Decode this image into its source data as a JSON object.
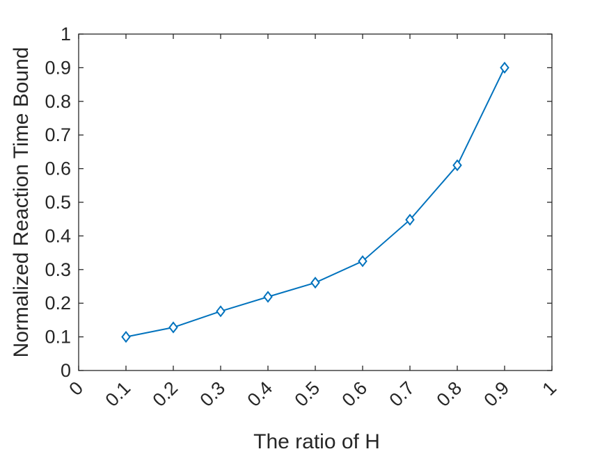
{
  "chart_data": {
    "type": "line",
    "title": "",
    "xlabel": "The ratio of H",
    "ylabel": "Normalized Reaction Time Bound",
    "xlim": [
      0,
      1
    ],
    "ylim": [
      0,
      1
    ],
    "x_ticks": [
      "0",
      "0.1",
      "0.2",
      "0.3",
      "0.4",
      "0.5",
      "0.6",
      "0.7",
      "0.8",
      "0.9",
      "1"
    ],
    "y_ticks": [
      "0",
      "0.1",
      "0.2",
      "0.3",
      "0.4",
      "0.5",
      "0.6",
      "0.7",
      "0.8",
      "0.9",
      "1"
    ],
    "grid": false,
    "marker": "diamond",
    "colors": {
      "series": "#0072BD",
      "axes": "#262626"
    },
    "series": [
      {
        "x": [
          0.1,
          0.2,
          0.3,
          0.4,
          0.5,
          0.6,
          0.7,
          0.8,
          0.9
        ],
        "y": [
          0.1,
          0.128,
          0.176,
          0.219,
          0.261,
          0.325,
          0.448,
          0.61,
          0.9
        ]
      }
    ]
  }
}
